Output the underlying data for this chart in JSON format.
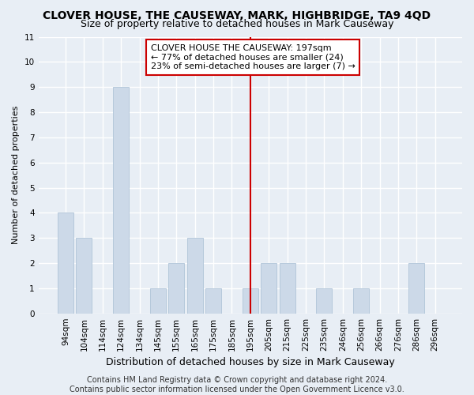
{
  "title": "CLOVER HOUSE, THE CAUSEWAY, MARK, HIGHBRIDGE, TA9 4QD",
  "subtitle": "Size of property relative to detached houses in Mark Causeway",
  "xlabel": "Distribution of detached houses by size in Mark Causeway",
  "ylabel": "Number of detached properties",
  "categories": [
    "94sqm",
    "104sqm",
    "114sqm",
    "124sqm",
    "134sqm",
    "145sqm",
    "155sqm",
    "165sqm",
    "175sqm",
    "185sqm",
    "195sqm",
    "205sqm",
    "215sqm",
    "225sqm",
    "235sqm",
    "246sqm",
    "256sqm",
    "266sqm",
    "276sqm",
    "286sqm",
    "296sqm"
  ],
  "values": [
    4,
    3,
    0,
    9,
    0,
    1,
    2,
    3,
    1,
    0,
    1,
    2,
    2,
    0,
    1,
    0,
    1,
    0,
    0,
    2,
    0
  ],
  "bar_color": "#ccd9e8",
  "bar_edge_color": "#b0c4d8",
  "vline_x_idx": 10,
  "vline_color": "#cc0000",
  "ylim": [
    0,
    11
  ],
  "yticks": [
    0,
    1,
    2,
    3,
    4,
    5,
    6,
    7,
    8,
    9,
    10,
    11
  ],
  "annotation_text": "CLOVER HOUSE THE CAUSEWAY: 197sqm\n← 77% of detached houses are smaller (24)\n23% of semi-detached houses are larger (7) →",
  "annotation_box_facecolor": "#ffffff",
  "annotation_box_edgecolor": "#cc0000",
  "footer": "Contains HM Land Registry data © Crown copyright and database right 2024.\nContains public sector information licensed under the Open Government Licence v3.0.",
  "background_color": "#e8eef5",
  "plot_background_color": "#e8eef5",
  "grid_color": "#ffffff",
  "title_fontsize": 10,
  "subtitle_fontsize": 9,
  "xlabel_fontsize": 9,
  "ylabel_fontsize": 8,
  "tick_fontsize": 7.5,
  "footer_fontsize": 7,
  "annotation_fontsize": 8
}
